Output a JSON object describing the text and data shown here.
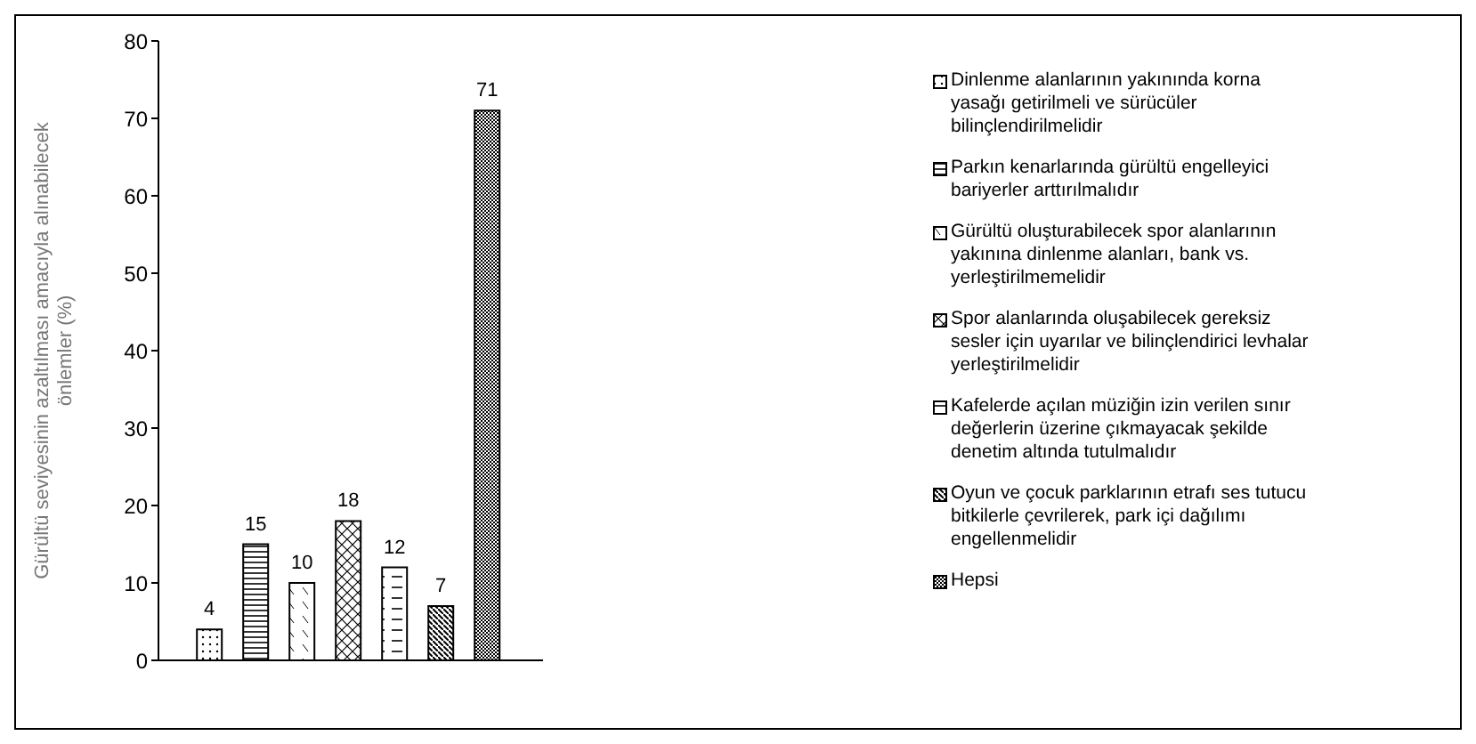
{
  "chart_data": {
    "type": "bar",
    "ylabel": "Gürültü seviyesinin azaltılması amacıyla alınabilecek önlemler (%)",
    "categories": [
      null
    ],
    "series": [
      {
        "name": "Dinlenme alanlarının yakınında korna yasağı getirilmeli ve sürücüler bilinçlendirilmelidir",
        "color": "#000000",
        "values": [
          4
        ]
      },
      {
        "name": "Parkın kenarlarında gürültü engelleyici bariyerler arttırılmalıdır",
        "color": "#000000",
        "values": [
          15
        ]
      },
      {
        "name": "Gürültü oluşturabilecek spor alanlarının yakınına dinlenme alanları, bank vs. yerleştirilmemelidir",
        "color": "#000000",
        "values": [
          10
        ]
      },
      {
        "name": "Spor alanlarında oluşabilecek gereksiz sesler için uyarılar ve bilinçlendirici levhalar yerleştirilmelidir",
        "color": "#000000",
        "values": [
          18
        ]
      },
      {
        "name": "Kafelerde açılan müziğin izin verilen sınır değerlerin üzerine çıkmayacak şekilde denetim altında tutulmalıdır",
        "color": "#000000",
        "values": [
          12
        ]
      },
      {
        "name": "Oyun ve çocuk parklarının etrafı ses tutucu bitkilerle çevrilerek, park içi dağılımı engellenmelidir",
        "color": "#000000",
        "values": [
          7
        ]
      },
      {
        "name": "Hepsi",
        "color": "#000000",
        "values": [
          71
        ]
      }
    ],
    "ylim": [
      0,
      80
    ],
    "yticks": [
      0,
      10,
      20,
      30,
      40,
      50,
      60,
      70,
      80
    ],
    "data_labels": true,
    "legend": "right",
    "grid": false
  }
}
